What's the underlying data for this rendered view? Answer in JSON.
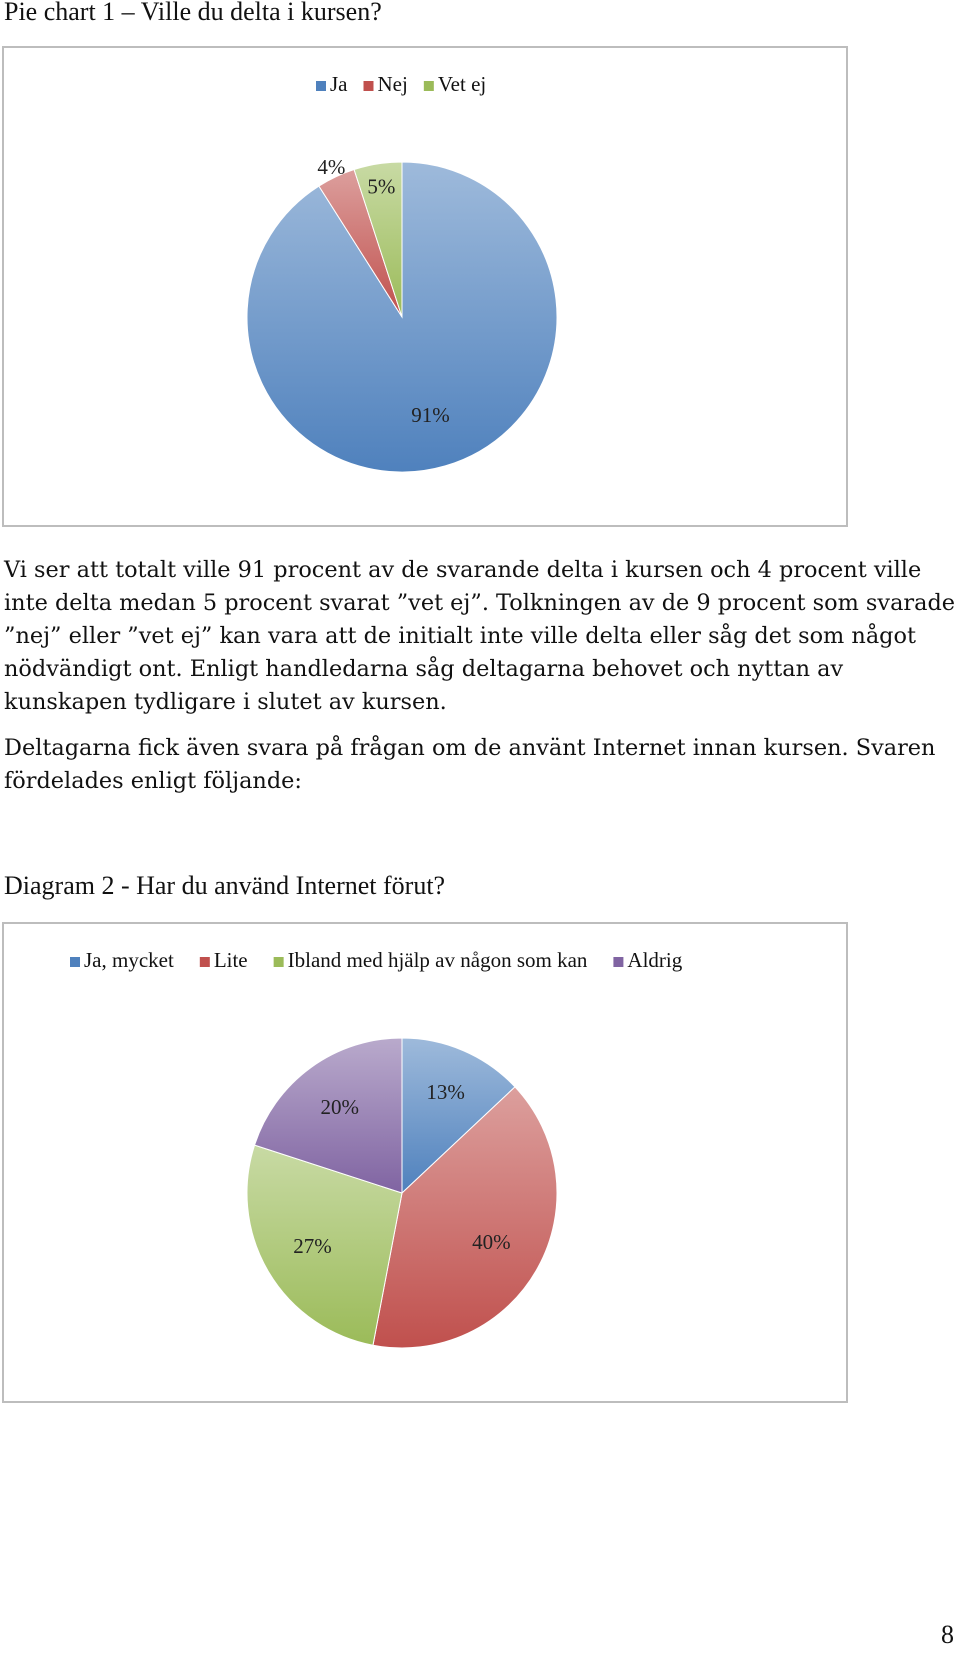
{
  "page": {
    "number": "8"
  },
  "chart1": {
    "caption": "Pie chart 1 – Ville du delta i kursen?"
  },
  "text": {
    "paragraph1": "Vi ser att totalt ville 91 procent av de svarande delta i kursen och 4 procent ville inte delta medan 5 procent svarat ”vet ej”.  Tolkningen av de 9 procent som svarade ”nej” eller ”vet ej” kan vara att de initialt inte ville delta eller såg det som något nödvändigt ont. Enligt handledarna såg deltagarna behovet och nyttan av kunskapen tydligare i slutet av kursen.",
    "paragraph2": "Deltagarna fick även svara på frågan om de använt Internet innan kursen. Svaren fördelades enligt följande:"
  },
  "chart2": {
    "caption": "Diagram 2 - Har du använd Internet förut?"
  },
  "chart_data": [
    {
      "type": "pie",
      "legend_position": "top",
      "categories": [
        "Ja",
        "Nej",
        "Vet ej"
      ],
      "values": [
        91,
        4,
        5
      ],
      "value_labels": [
        "91%",
        "4%",
        "5%"
      ],
      "colors": [
        "#4f81bd",
        "#c0504d",
        "#9bbb59"
      ]
    },
    {
      "type": "pie",
      "legend_position": "top",
      "categories": [
        "Ja, mycket",
        "Lite",
        "Ibland med hjälp av någon som kan",
        "Aldrig"
      ],
      "values": [
        13,
        40,
        27,
        20
      ],
      "value_labels": [
        "13%",
        "40%",
        "27%",
        "20%"
      ],
      "colors": [
        "#4f81bd",
        "#c0504d",
        "#9bbb59",
        "#8064a2"
      ]
    }
  ]
}
